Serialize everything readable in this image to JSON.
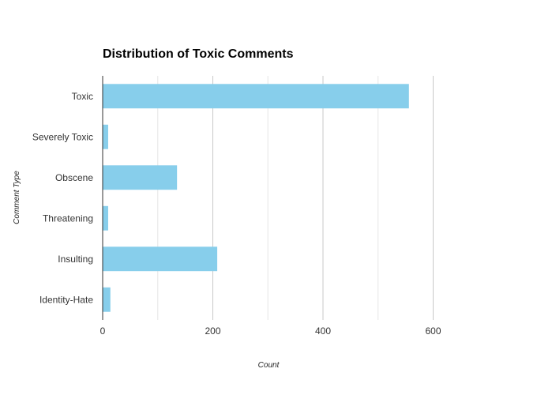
{
  "chart_data": {
    "type": "bar",
    "orientation": "horizontal",
    "title": "Distribution of Toxic Comments",
    "xlabel": "Count",
    "ylabel": "Comment Type",
    "categories": [
      "Toxic",
      "Severely Toxic",
      "Obscene",
      "Threatening",
      "Insulting",
      "Identity-Hate"
    ],
    "values": [
      556,
      10,
      135,
      10,
      208,
      14
    ],
    "xlim": [
      0,
      720
    ],
    "xticks": [
      0,
      200,
      400,
      600
    ],
    "grid": true,
    "legend": "none",
    "bar_color": "#87CEEB"
  }
}
